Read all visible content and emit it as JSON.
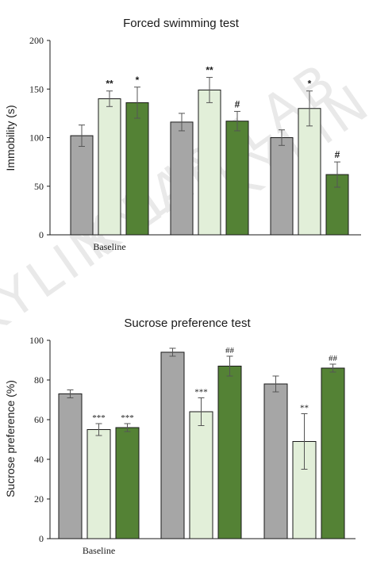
{
  "colors": {
    "gray": "#a6a6a6",
    "light_green": "#e2efd9",
    "dark_green": "#548235",
    "stroke": "#1a1a1a",
    "watermark": "#e9e9e9"
  },
  "watermark_text": "KYLIN LAB",
  "chart_data": [
    {
      "type": "bar",
      "title": "Forced swimming test",
      "xlabel": "",
      "ylabel": "Immobility (s)",
      "ylim": [
        0,
        200
      ],
      "yticks": [
        0,
        50,
        100,
        150,
        200
      ],
      "categories": [
        "Baseline",
        "",
        ""
      ],
      "grid": false,
      "legend": "none",
      "series": [
        {
          "values": [
            102,
            116,
            100
          ],
          "errors": [
            11,
            9,
            8
          ],
          "color": "#a6a6a6",
          "annotations": [
            "",
            "",
            ""
          ]
        },
        {
          "values": [
            140,
            149,
            130
          ],
          "errors": [
            8,
            13,
            18
          ],
          "color": "#e2efd9",
          "annotations": [
            "**",
            "**",
            "*"
          ]
        },
        {
          "values": [
            136,
            117,
            62
          ],
          "errors": [
            16,
            10,
            13
          ],
          "color": "#548235",
          "annotations": [
            "*",
            "#",
            "#"
          ]
        }
      ]
    },
    {
      "type": "bar",
      "title": "Sucrose preference test",
      "xlabel": "",
      "ylabel": "Sucrose preference (%)",
      "ylim": [
        0,
        100
      ],
      "yticks": [
        0,
        20,
        40,
        60,
        80,
        100
      ],
      "categories": [
        "Baseline",
        "",
        ""
      ],
      "grid": false,
      "legend": "none",
      "series": [
        {
          "values": [
            73,
            94,
            78
          ],
          "errors": [
            2,
            2,
            4
          ],
          "color": "#a6a6a6",
          "annotations": [
            "",
            "",
            ""
          ]
        },
        {
          "values": [
            55,
            64,
            49
          ],
          "errors": [
            3,
            7,
            14
          ],
          "color": "#e2efd9",
          "annotations": [
            "***",
            "***",
            "**"
          ]
        },
        {
          "values": [
            56,
            87,
            86
          ],
          "errors": [
            2,
            5,
            2
          ],
          "color": "#548235",
          "annotations": [
            "***",
            "##",
            "##"
          ]
        }
      ]
    }
  ]
}
